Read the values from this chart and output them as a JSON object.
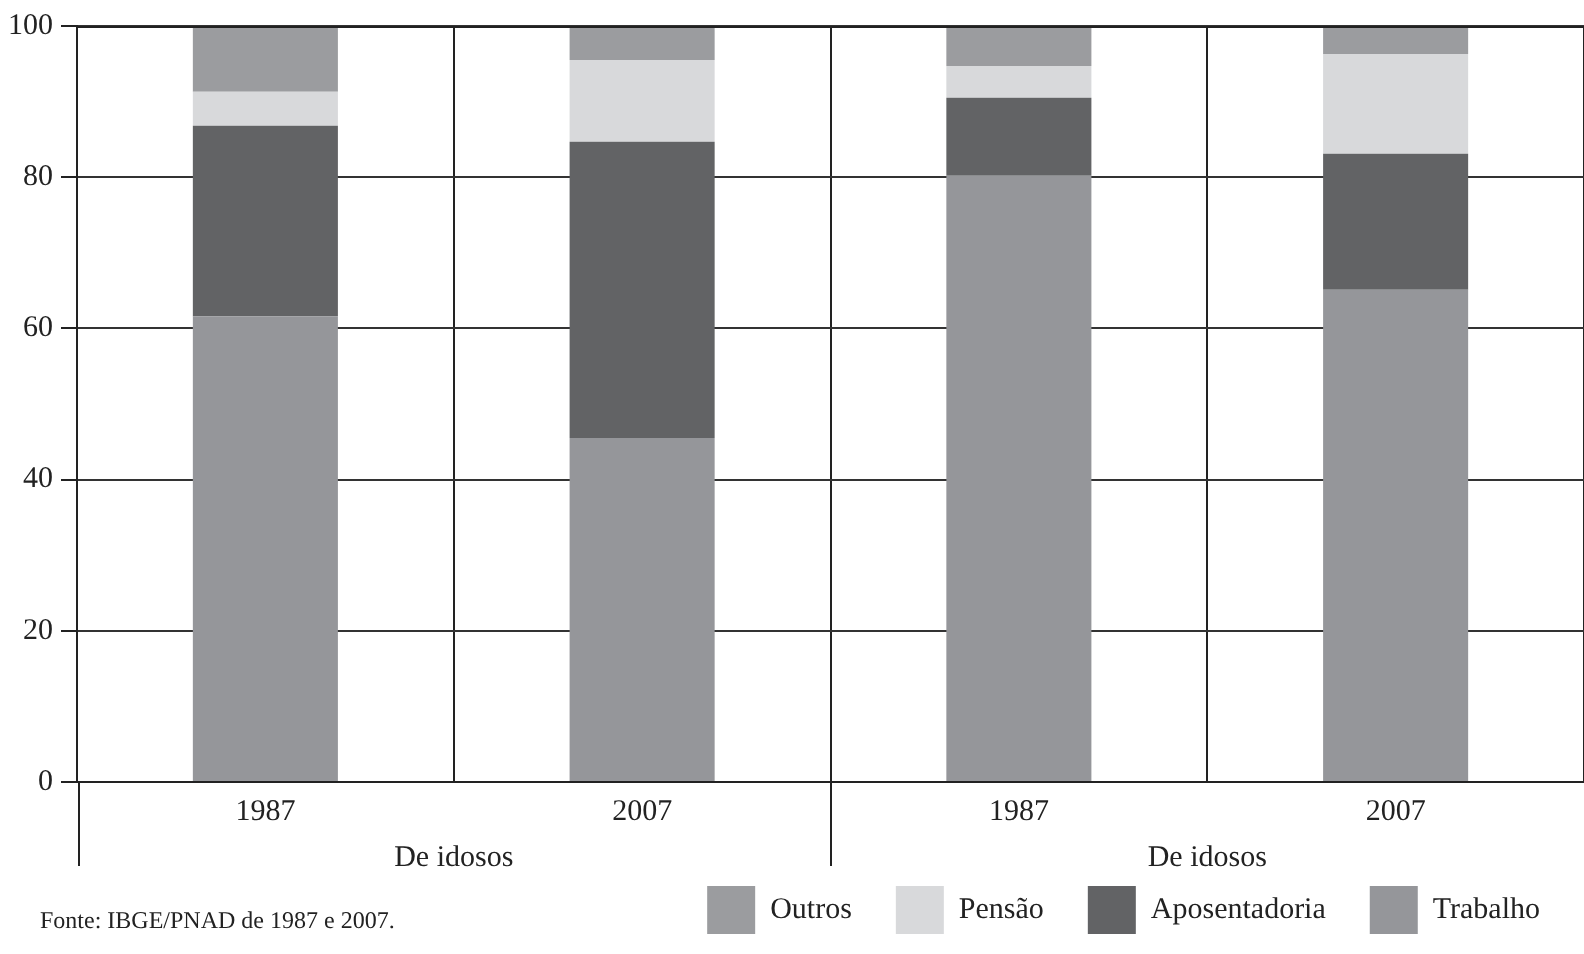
{
  "chart_data": {
    "type": "bar",
    "stacked": true,
    "categories": [
      "1987",
      "2007",
      "1987",
      "2007"
    ],
    "series": [
      {
        "name": "Trabalho",
        "color": "#95969a",
        "values": [
          61.6,
          45.5,
          80.2,
          65.1
        ]
      },
      {
        "name": "Aposentadoria",
        "color": "#626365",
        "values": [
          25.2,
          39.2,
          10.3,
          18
        ]
      },
      {
        "name": "Pensão",
        "color": "#d8d9db",
        "values": [
          4.5,
          10.8,
          4.2,
          13.2
        ]
      },
      {
        "name": "Outros",
        "color": "#9b9c9f",
        "values": [
          8.7,
          4.5,
          5.3,
          3.7
        ]
      }
    ],
    "ylim": [
      0,
      100
    ],
    "yticks": [
      0,
      20,
      40,
      60,
      80,
      100
    ],
    "grid": true,
    "legend": "bottom right",
    "annotations": [
      "De idosos",
      "De idosos",
      "Fonte: IBGE/PNAD de 1987 e 2007."
    ]
  }
}
